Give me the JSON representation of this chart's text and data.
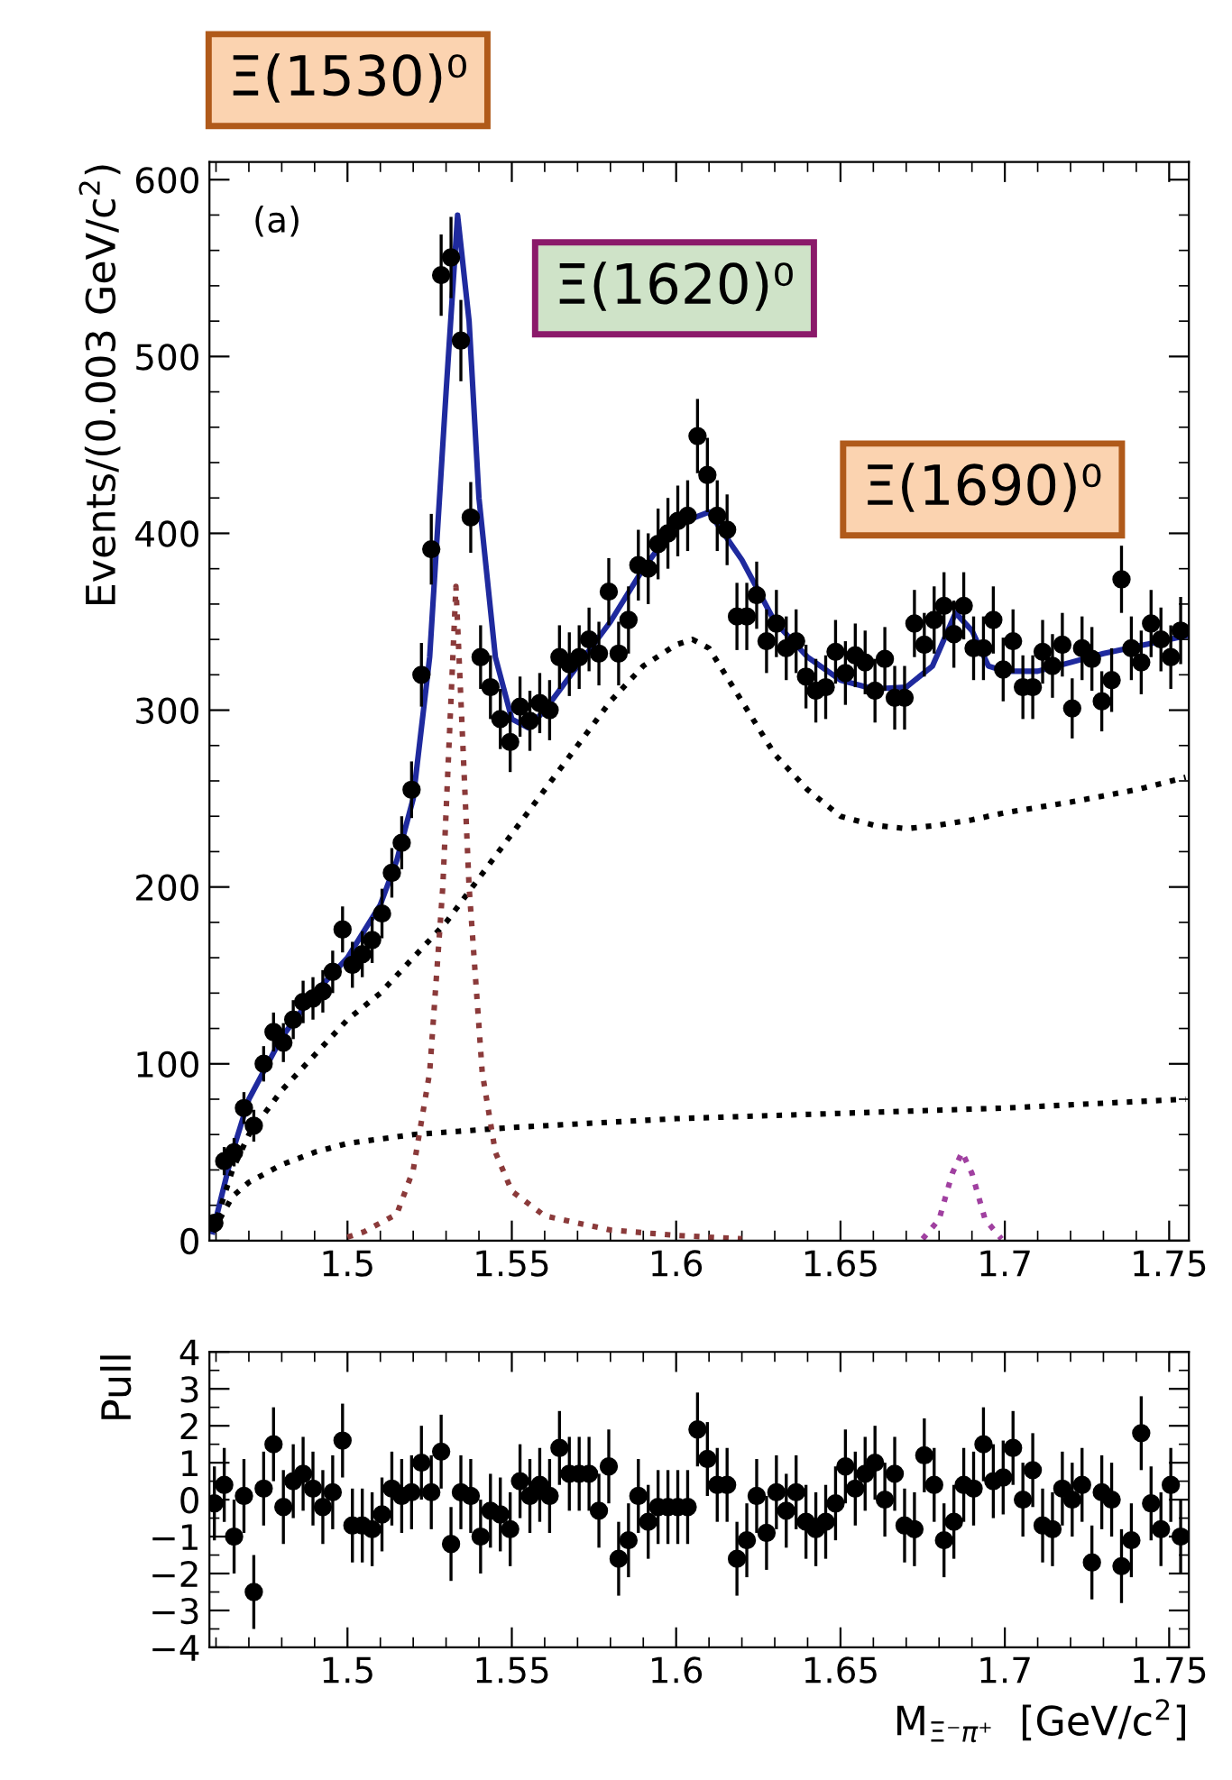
{
  "chart_data": [
    {
      "type": "scatter",
      "ylabel": "Events/(0.003 GeV/c$^{2}$)",
      "xlim": [
        1.458,
        1.756
      ],
      "ylim": [
        0,
        610
      ],
      "xticks": [
        1.5,
        1.55,
        1.6,
        1.65,
        1.7,
        1.75
      ],
      "yticks": [
        0,
        100,
        200,
        300,
        400,
        500,
        600
      ],
      "annotations": [
        "(a)",
        "Ξ(1530)⁰",
        "Ξ(1620)⁰",
        "Ξ(1690)⁰"
      ],
      "grid": false,
      "legend": false,
      "series": [
        {
          "marker": "circle",
          "color": "#000000",
          "x": [
            1.4595,
            1.4625,
            1.4655,
            1.4685,
            1.4715,
            1.4745,
            1.4775,
            1.4805,
            1.4835,
            1.4865,
            1.4895,
            1.4925,
            1.4955,
            1.4985,
            1.5015,
            1.5045,
            1.5075,
            1.5105,
            1.5135,
            1.5165,
            1.5195,
            1.5225,
            1.5255,
            1.5285,
            1.5315,
            1.5345,
            1.5375,
            1.5405,
            1.5435,
            1.5465,
            1.5495,
            1.5525,
            1.5555,
            1.5585,
            1.5615,
            1.5645,
            1.5675,
            1.5705,
            1.5735,
            1.5765,
            1.5795,
            1.5825,
            1.5855,
            1.5885,
            1.5915,
            1.5945,
            1.5975,
            1.6005,
            1.6035,
            1.6065,
            1.6095,
            1.6125,
            1.6155,
            1.6185,
            1.6215,
            1.6245,
            1.6275,
            1.6305,
            1.6335,
            1.6365,
            1.6395,
            1.6425,
            1.6455,
            1.6485,
            1.6515,
            1.6545,
            1.6575,
            1.6605,
            1.6635,
            1.6665,
            1.6695,
            1.6725,
            1.6755,
            1.6785,
            1.6815,
            1.6845,
            1.6875,
            1.6905,
            1.6935,
            1.6965,
            1.6995,
            1.7025,
            1.7055,
            1.7085,
            1.7115,
            1.7145,
            1.7175,
            1.7205,
            1.7235,
            1.7265,
            1.7295,
            1.7325,
            1.7355,
            1.7385,
            1.7415,
            1.7445,
            1.7475,
            1.7505,
            1.7535
          ],
          "values": [
            10,
            45,
            50,
            75,
            65,
            100,
            118,
            112,
            125,
            135,
            137,
            141,
            152,
            176,
            156,
            162,
            170,
            185,
            208,
            225,
            255,
            320,
            391,
            546,
            556,
            509,
            409,
            330,
            313,
            295,
            282,
            302,
            294,
            304,
            300,
            330,
            326,
            330,
            340,
            332,
            367,
            332,
            351,
            382,
            380,
            394,
            400,
            407,
            410,
            455,
            433,
            410,
            402,
            353,
            353,
            365,
            339,
            349,
            335,
            339,
            319,
            311,
            313,
            333,
            321,
            331,
            327,
            311,
            329,
            307,
            307,
            349,
            337,
            351,
            359,
            343,
            359,
            335,
            335,
            351,
            323,
            339,
            313,
            313,
            333,
            325,
            337,
            301,
            335,
            329,
            305,
            317,
            374,
            335,
            327,
            349,
            340,
            330,
            345
          ],
          "errors": [
            4,
            8,
            8,
            9,
            9,
            10,
            11,
            11,
            11,
            12,
            12,
            12,
            12,
            13,
            13,
            13,
            13,
            14,
            14,
            15,
            16,
            18,
            20,
            23,
            23,
            23,
            20,
            18,
            18,
            17,
            17,
            17,
            17,
            17,
            17,
            18,
            18,
            18,
            18,
            18,
            19,
            18,
            19,
            20,
            20,
            20,
            20,
            20,
            20,
            21,
            21,
            20,
            20,
            19,
            19,
            19,
            18,
            19,
            18,
            18,
            18,
            18,
            18,
            18,
            18,
            18,
            18,
            18,
            18,
            18,
            18,
            19,
            18,
            19,
            19,
            19,
            19,
            18,
            18,
            19,
            18,
            18,
            18,
            18,
            18,
            18,
            18,
            17,
            18,
            18,
            17,
            18,
            19,
            18,
            18,
            19,
            18,
            18,
            19
          ]
        },
        {
          "type": "line",
          "color": "#1f2a9e",
          "line_style": "solid",
          "x": [
            1.459,
            1.465,
            1.47,
            1.48,
            1.49,
            1.5,
            1.51,
            1.515,
            1.52,
            1.525,
            1.53,
            1.5335,
            1.537,
            1.54,
            1.545,
            1.55,
            1.555,
            1.56,
            1.57,
            1.58,
            1.59,
            1.6,
            1.61,
            1.62,
            1.63,
            1.64,
            1.65,
            1.66,
            1.67,
            1.678,
            1.685,
            1.69,
            1.695,
            1.7,
            1.71,
            1.72,
            1.73,
            1.74,
            1.755
          ],
          "values": [
            5,
            50,
            80,
            115,
            140,
            160,
            190,
            215,
            250,
            330,
            480,
            580,
            520,
            420,
            330,
            295,
            290,
            300,
            325,
            350,
            380,
            405,
            412,
            385,
            350,
            330,
            317,
            312,
            313,
            325,
            355,
            345,
            325,
            322,
            322,
            327,
            332,
            336,
            342
          ]
        },
        {
          "type": "line",
          "color": "#000000",
          "line_style": "dotted",
          "x": [
            1.459,
            1.465,
            1.47,
            1.48,
            1.49,
            1.5,
            1.51,
            1.52,
            1.53,
            1.54,
            1.55,
            1.56,
            1.57,
            1.58,
            1.59,
            1.6,
            1.605,
            1.61,
            1.62,
            1.63,
            1.64,
            1.65,
            1.66,
            1.67,
            1.68,
            1.69,
            1.7,
            1.72,
            1.74,
            1.755
          ],
          "values": [
            5,
            40,
            60,
            85,
            105,
            125,
            140,
            160,
            180,
            205,
            230,
            255,
            280,
            305,
            325,
            337,
            340,
            335,
            305,
            275,
            255,
            240,
            235,
            233,
            235,
            238,
            242,
            248,
            255,
            262
          ]
        },
        {
          "type": "line",
          "color": "#000000",
          "line_style": "dotted",
          "x": [
            1.459,
            1.465,
            1.47,
            1.48,
            1.49,
            1.5,
            1.52,
            1.55,
            1.6,
            1.65,
            1.7,
            1.755
          ],
          "values": [
            5,
            25,
            33,
            43,
            50,
            55,
            60,
            64,
            69,
            72,
            75,
            80
          ]
        },
        {
          "type": "line",
          "color": "#8b3a3a",
          "line_style": "dotted",
          "x": [
            1.5,
            1.505,
            1.515,
            1.52,
            1.525,
            1.529,
            1.533,
            1.537,
            1.541,
            1.545,
            1.55,
            1.56,
            1.58,
            1.6,
            1.62
          ],
          "values": [
            2,
            5,
            15,
            40,
            95,
            200,
            370,
            200,
            95,
            50,
            28,
            14,
            6,
            3,
            1
          ]
        },
        {
          "type": "line",
          "color": "#a040a0",
          "line_style": "dotted",
          "x": [
            1.675,
            1.68,
            1.684,
            1.687,
            1.69,
            1.694,
            1.699
          ],
          "values": [
            1,
            12,
            38,
            50,
            38,
            12,
            1
          ]
        }
      ]
    },
    {
      "type": "scatter",
      "ylabel": "Pull",
      "xlabel": "M$_{Ξ⁻π⁺}$  [GeV/c$^{2}$]",
      "xlim": [
        1.458,
        1.756
      ],
      "ylim": [
        -4,
        4
      ],
      "xticks": [
        1.5,
        1.55,
        1.6,
        1.65,
        1.7,
        1.75
      ],
      "yticks": [
        {
          "value": -4,
          "label": "−4"
        },
        {
          "value": -3,
          "label": "−3"
        },
        {
          "value": -2,
          "label": "−2"
        },
        {
          "value": -1,
          "label": "−1"
        },
        0,
        1,
        2,
        3,
        4
      ],
      "grid": false,
      "legend": false,
      "series": [
        {
          "marker": "circle",
          "color": "#000000",
          "x": [
            1.4595,
            1.4625,
            1.4655,
            1.4685,
            1.4715,
            1.4745,
            1.4775,
            1.4805,
            1.4835,
            1.4865,
            1.4895,
            1.4925,
            1.4955,
            1.4985,
            1.5015,
            1.5045,
            1.5075,
            1.5105,
            1.5135,
            1.5165,
            1.5195,
            1.5225,
            1.5255,
            1.5285,
            1.5315,
            1.5345,
            1.5375,
            1.5405,
            1.5435,
            1.5465,
            1.5495,
            1.5525,
            1.5555,
            1.5585,
            1.5615,
            1.5645,
            1.5675,
            1.5705,
            1.5735,
            1.5765,
            1.5795,
            1.5825,
            1.5855,
            1.5885,
            1.5915,
            1.5945,
            1.5975,
            1.6005,
            1.6035,
            1.6065,
            1.6095,
            1.6125,
            1.6155,
            1.6185,
            1.6215,
            1.6245,
            1.6275,
            1.6305,
            1.6335,
            1.6365,
            1.6395,
            1.6425,
            1.6455,
            1.6485,
            1.6515,
            1.6545,
            1.6575,
            1.6605,
            1.6635,
            1.6665,
            1.6695,
            1.6725,
            1.6755,
            1.6785,
            1.6815,
            1.6845,
            1.6875,
            1.6905,
            1.6935,
            1.6965,
            1.6995,
            1.7025,
            1.7055,
            1.7085,
            1.7115,
            1.7145,
            1.7175,
            1.7205,
            1.7235,
            1.7265,
            1.7295,
            1.7325,
            1.7355,
            1.7385,
            1.7415,
            1.7445,
            1.7475,
            1.7505,
            1.7535
          ],
          "values": [
            -0.1,
            0.4,
            -1.0,
            0.1,
            -2.5,
            0.3,
            1.5,
            -0.2,
            0.5,
            0.7,
            0.3,
            -0.2,
            0.2,
            1.6,
            -0.7,
            -0.7,
            -0.8,
            -0.4,
            0.3,
            0.1,
            0.2,
            1.0,
            0.2,
            1.3,
            -1.2,
            0.2,
            0.1,
            -1.0,
            -0.3,
            -0.4,
            -0.8,
            0.5,
            0.1,
            0.4,
            0.1,
            1.4,
            0.7,
            0.7,
            0.7,
            -0.3,
            0.9,
            -1.6,
            -1.1,
            0.1,
            -0.6,
            -0.2,
            -0.2,
            -0.2,
            -0.2,
            1.9,
            1.1,
            0.4,
            0.4,
            -1.6,
            -1.1,
            0.1,
            -0.9,
            0.2,
            -0.3,
            0.2,
            -0.6,
            -0.8,
            -0.6,
            -0.1,
            0.9,
            0.3,
            0.7,
            1.0,
            0.0,
            0.7,
            -0.7,
            -0.8,
            1.2,
            0.4,
            -1.1,
            -0.6,
            0.4,
            0.3,
            1.5,
            0.5,
            0.6,
            1.4,
            0.0,
            0.8,
            -0.7,
            -0.8,
            0.3,
            0.0,
            0.4,
            -1.7,
            0.2,
            0.0,
            -1.8,
            -1.1,
            1.8,
            -0.1,
            -0.8,
            0.4,
            -1.0
          ],
          "errors": [
            1,
            1,
            1,
            1,
            1,
            1,
            1,
            1,
            1,
            1,
            1,
            1,
            1,
            1,
            1,
            1,
            1,
            1,
            1,
            1,
            1,
            1,
            1,
            1,
            1,
            1,
            1,
            1,
            1,
            1,
            1,
            1,
            1,
            1,
            1,
            1,
            1,
            1,
            1,
            1,
            1,
            1,
            1,
            1,
            1,
            1,
            1,
            1,
            1,
            1,
            1,
            1,
            1,
            1,
            1,
            1,
            1,
            1,
            1,
            1,
            1,
            1,
            1,
            1,
            1,
            1,
            1,
            1,
            1,
            1,
            1,
            1,
            1,
            1,
            1,
            1,
            1,
            1,
            1,
            1,
            1,
            1,
            1,
            1,
            1,
            1,
            1,
            1,
            1,
            1,
            1,
            1,
            1,
            1,
            1,
            1,
            1,
            1,
            1
          ]
        }
      ]
    }
  ]
}
